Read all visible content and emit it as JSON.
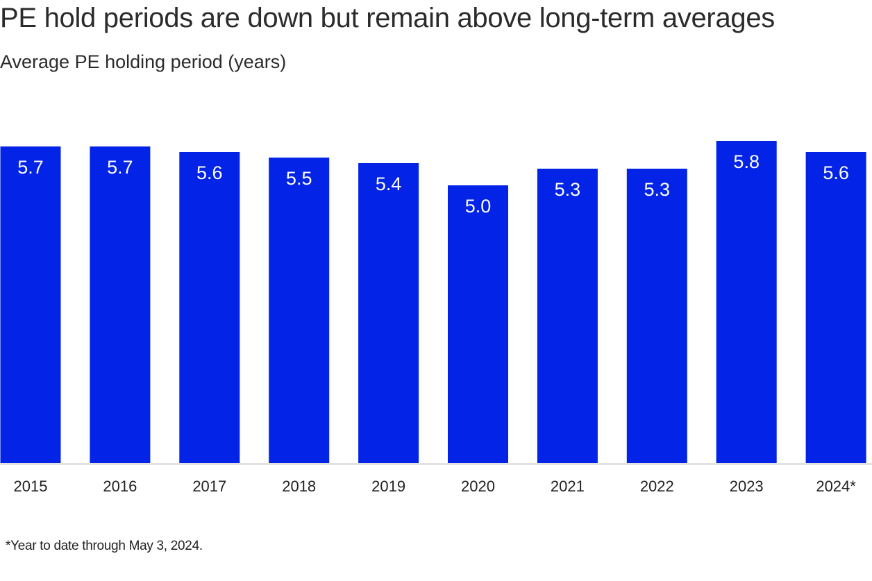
{
  "title": "PE hold periods are down but remain above long-term averages",
  "subtitle": "Average PE holding period (years)",
  "footnote": "*Year to date through May 3, 2024.",
  "colors": {
    "bar": "#0323E6",
    "baseline": "#E2E2E2",
    "bar_label": "#FFFFFF",
    "tick_label": "#222222"
  },
  "chart_data": {
    "type": "bar",
    "title": "PE hold periods are down but remain above long-term averages",
    "ylabel": "Average PE holding period (years)",
    "xlabel": "",
    "categories": [
      "2015",
      "2016",
      "2017",
      "2018",
      "2019",
      "2020",
      "2021",
      "2022",
      "2023",
      "2024*"
    ],
    "values": [
      5.7,
      5.7,
      5.6,
      5.5,
      5.4,
      5.0,
      5.3,
      5.3,
      5.8,
      5.6
    ],
    "value_labels": [
      "5.7",
      "5.7",
      "5.6",
      "5.5",
      "5.4",
      "5.0",
      "5.3",
      "5.3",
      "5.8",
      "5.6"
    ],
    "ylim": [
      0,
      6
    ],
    "grid": false,
    "legend": "none"
  }
}
